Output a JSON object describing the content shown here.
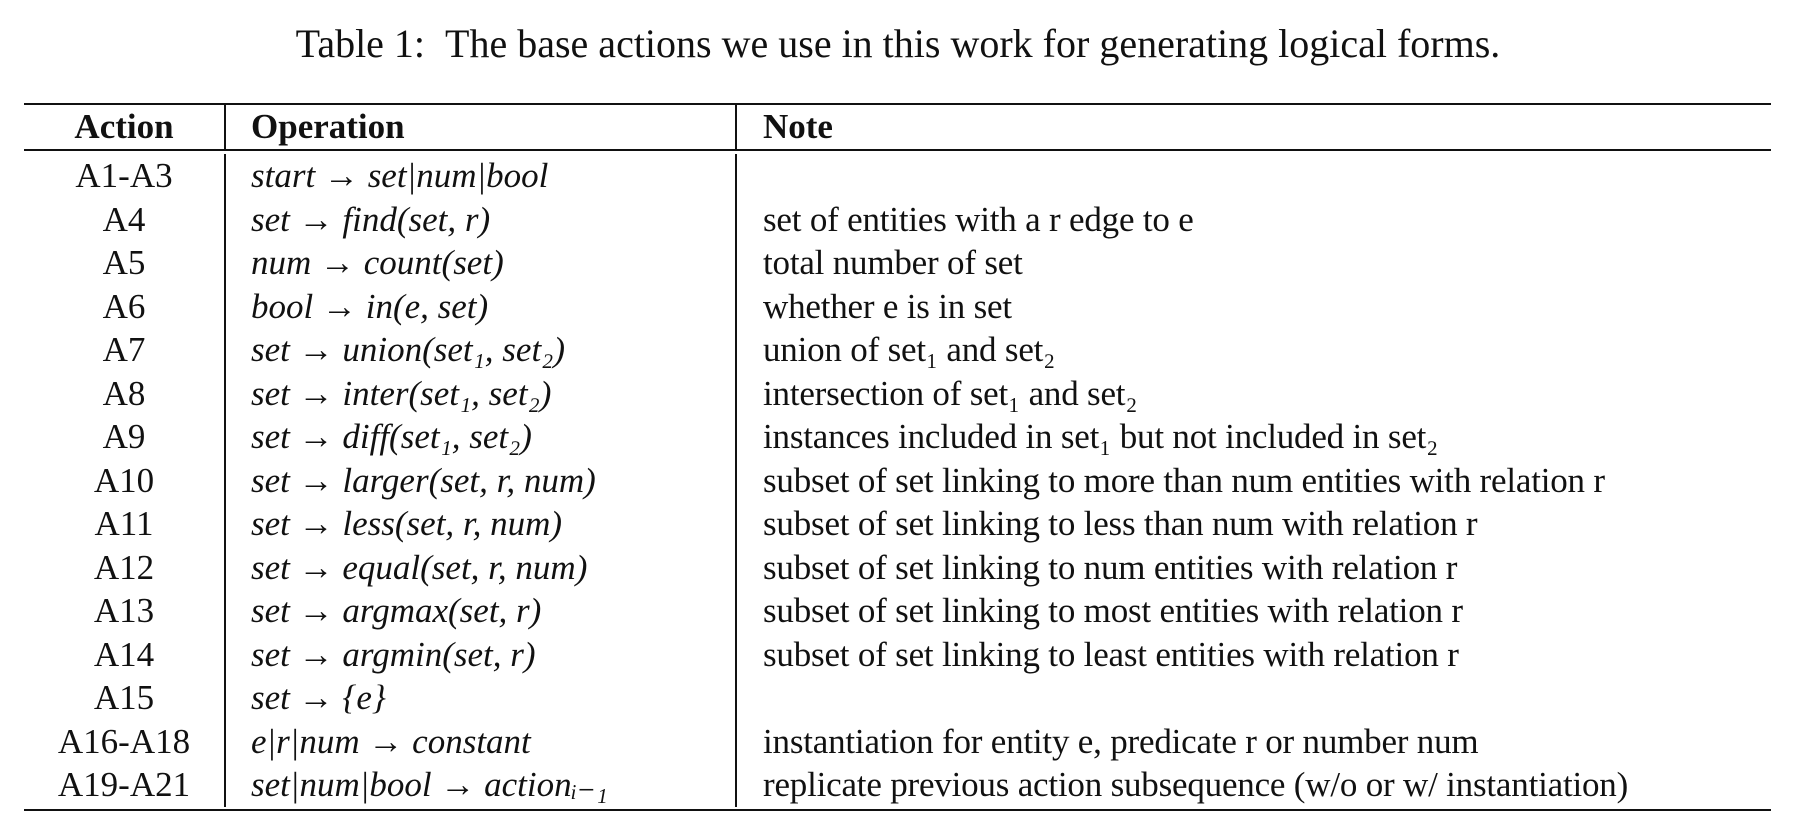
{
  "caption": {
    "label": "Table 1:",
    "text": "The base actions we use in this work for generating logical forms."
  },
  "table": {
    "headers": [
      "Action",
      "Operation",
      "Note"
    ],
    "rows": [
      {
        "action": "A1-A3",
        "operation": "start → set|num|bool",
        "note": ""
      },
      {
        "action": "A4",
        "operation": "set → find(set, r)",
        "note": "set of entities with a r edge to e"
      },
      {
        "action": "A5",
        "operation": "num → count(set)",
        "note": "total number of set"
      },
      {
        "action": "A6",
        "operation": "bool → in(e, set)",
        "note": "whether e is in set"
      },
      {
        "action": "A7",
        "operation": "set → union(set₁, set₂)",
        "note": "union of set₁ and set₂"
      },
      {
        "action": "A8",
        "operation": "set → inter(set₁, set₂)",
        "note": "intersection of set₁ and set₂"
      },
      {
        "action": "A9",
        "operation": "set → diff(set₁, set₂)",
        "note": "instances included in set₁ but not included in set₂"
      },
      {
        "action": "A10",
        "operation": "set → larger(set, r, num)",
        "note": "subset of set linking to more than num entities with relation r"
      },
      {
        "action": "A11",
        "operation": "set → less(set, r, num)",
        "note": "subset of set linking to less than num with relation r"
      },
      {
        "action": "A12",
        "operation": "set → equal(set, r, num)",
        "note": "subset of set linking to num entities with relation r"
      },
      {
        "action": "A13",
        "operation": "set → argmax(set, r)",
        "note": "subset of set linking to most entities with relation r"
      },
      {
        "action": "A14",
        "operation": "set → argmin(set, r)",
        "note": "subset of set linking to least entities with relation r"
      },
      {
        "action": "A15",
        "operation": "set → {e}",
        "note": ""
      },
      {
        "action": "A16-A18",
        "operation": "e|r|num → constant",
        "note": "instantiation for entity e, predicate r or number num"
      },
      {
        "action": "A19-A21",
        "operation": "set|num|bool → actionᵢ₋₁",
        "note": "replicate previous action subsequence (w/o or w/ instantiation)"
      }
    ]
  }
}
